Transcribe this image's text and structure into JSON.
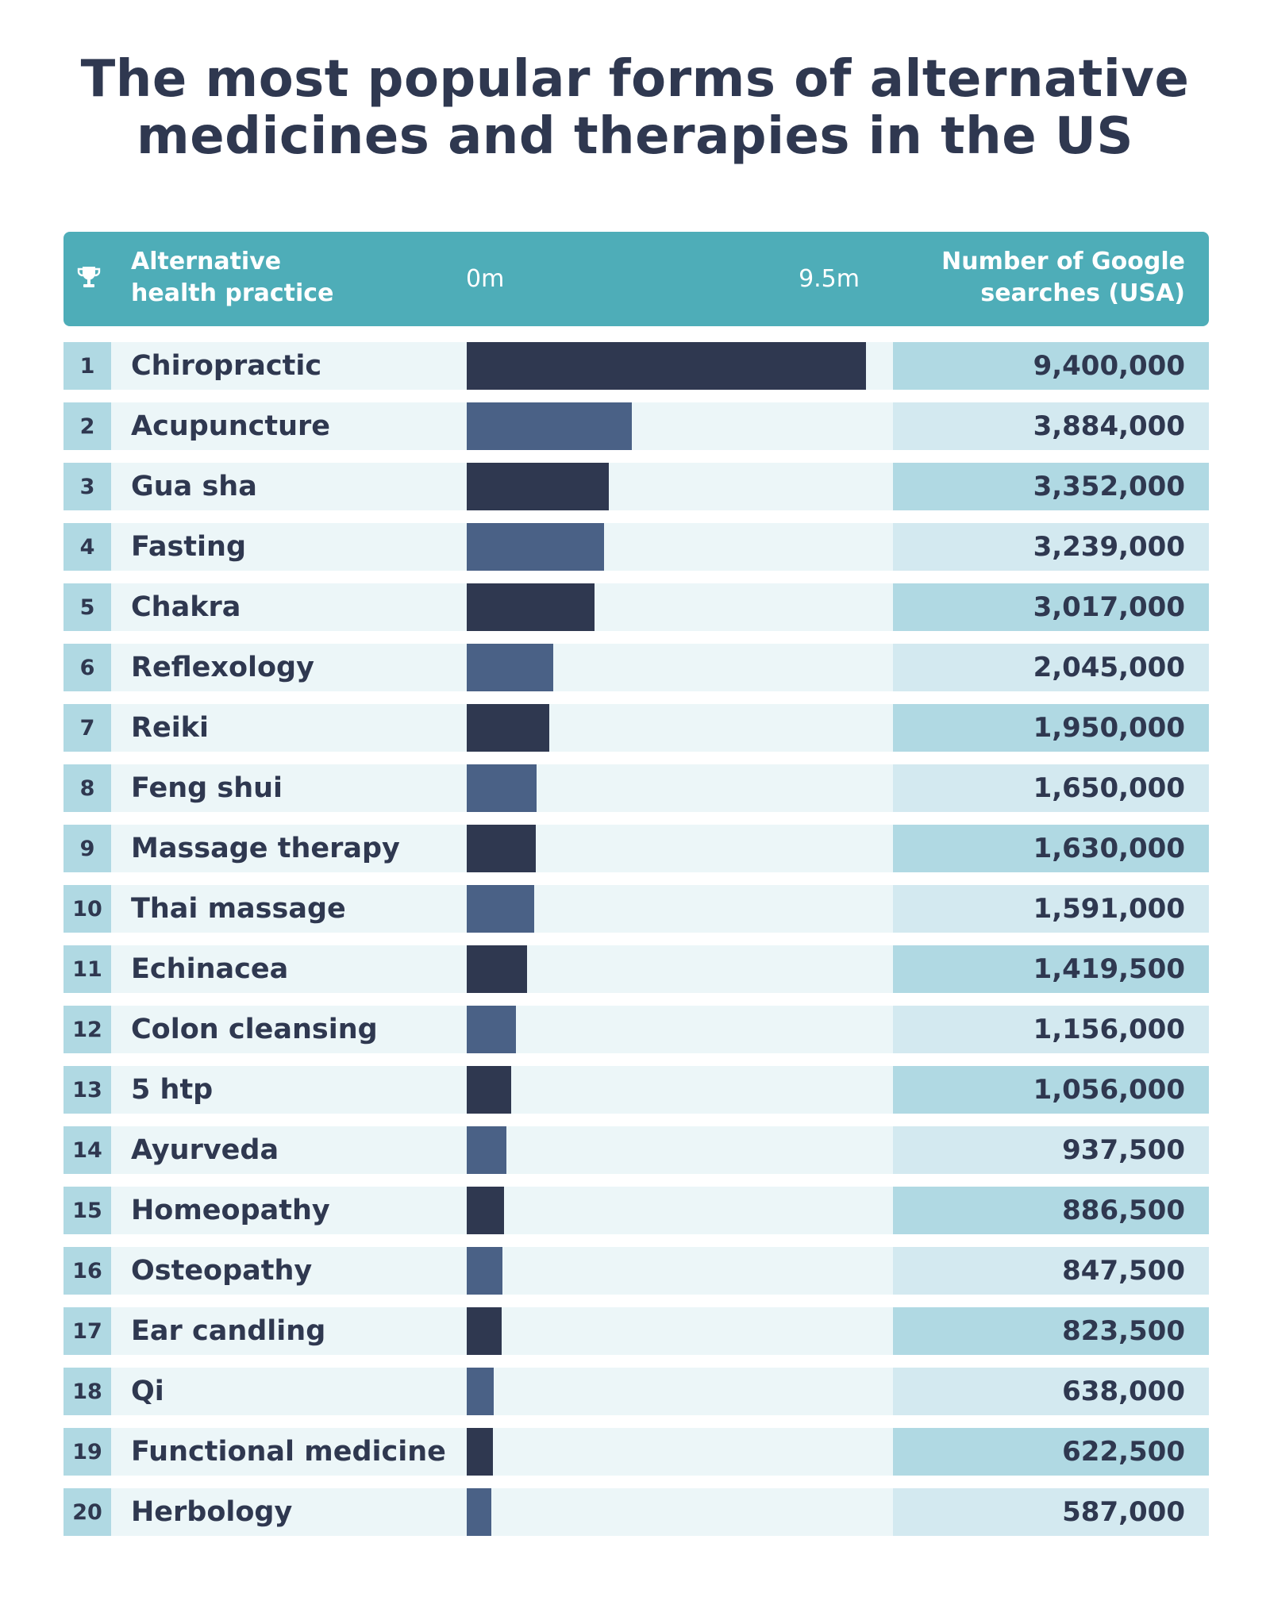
{
  "title": {
    "line1": "The most popular forms of alternative",
    "line2": "medicines and therapies in the US"
  },
  "header": {
    "icon": "trophy-icon",
    "practice_line1": "Alternative",
    "practice_line2": "health practice",
    "axis_min_label": "0m",
    "axis_max_label": "9.5m",
    "searches_line1": "Number of Google",
    "searches_line2": "searches (USA)"
  },
  "colors": {
    "header_bg": "#4eadb8",
    "bar_dark": "#2f3850",
    "bar_light": "#4a6186",
    "row_bg": "#ecf6f8",
    "rank_bg": "#b0d9e3",
    "value_bg_dark": "#b0d9e3",
    "value_bg_light": "#d3e9f0"
  },
  "chart_data": {
    "type": "bar",
    "orientation": "horizontal",
    "title": "The most popular forms of alternative medicines and therapies in the US",
    "xlabel": "Number of Google searches (USA)",
    "xlim": [
      0,
      9500000
    ],
    "axis_tick_labels": [
      "0m",
      "9.5m"
    ],
    "ranks": [
      1,
      2,
      3,
      4,
      5,
      6,
      7,
      8,
      9,
      10,
      11,
      12,
      13,
      14,
      15,
      16,
      17,
      18,
      19,
      20
    ],
    "categories": [
      "Chiropractic",
      "Acupuncture",
      "Gua sha",
      "Fasting",
      "Chakra",
      "Reflexology",
      "Reiki",
      "Feng shui",
      "Massage therapy",
      "Thai massage",
      "Echinacea",
      "Colon cleansing",
      "5 htp",
      "Ayurveda",
      "Homeopathy",
      "Osteopathy",
      "Ear candling",
      "Qi",
      "Functional medicine",
      "Herbology"
    ],
    "values": [
      9400000,
      3884000,
      3352000,
      3239000,
      3017000,
      2045000,
      1950000,
      1650000,
      1630000,
      1591000,
      1419500,
      1156000,
      1056000,
      937500,
      886500,
      847500,
      823500,
      638000,
      622500,
      587000
    ],
    "value_labels": [
      "9,400,000",
      "3,884,000",
      "3,352,000",
      "3,239,000",
      "3,017,000",
      "2,045,000",
      "1,950,000",
      "1,650,000",
      "1,630,000",
      "1,591,000",
      "1,419,500",
      "1,156,000",
      "1,056,000",
      "937,500",
      "886,500",
      "847,500",
      "823,500",
      "638,000",
      "622,500",
      "587,000"
    ]
  }
}
